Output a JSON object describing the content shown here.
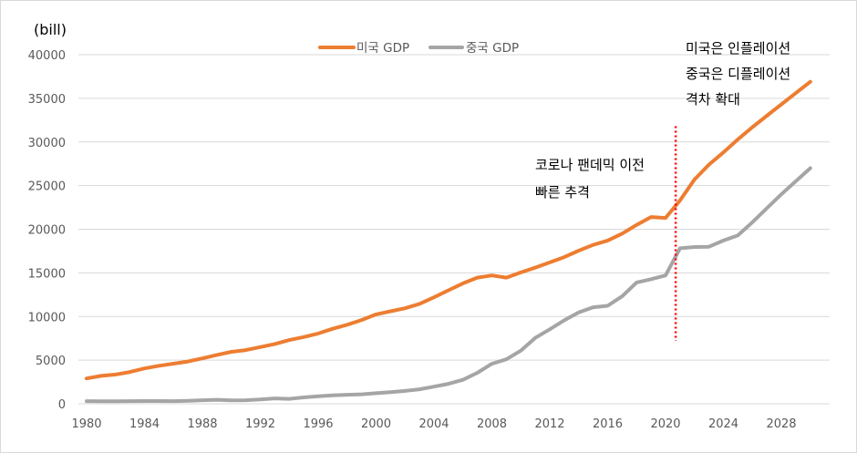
{
  "chart_data": {
    "type": "line",
    "title": "",
    "ylabel": "(bill)",
    "xlabel": "",
    "ylim": [
      0,
      40000
    ],
    "xlim": [
      1980,
      2030
    ],
    "yticks": [
      0,
      5000,
      10000,
      15000,
      20000,
      25000,
      30000,
      35000,
      40000
    ],
    "xticks": [
      1980,
      1984,
      1988,
      1992,
      1996,
      2000,
      2004,
      2008,
      2012,
      2016,
      2020,
      2024,
      2028
    ],
    "grid": "horizontal",
    "legend_position": "top-center",
    "x": [
      1980,
      1981,
      1982,
      1983,
      1984,
      1985,
      1986,
      1987,
      1988,
      1989,
      1990,
      1991,
      1992,
      1993,
      1994,
      1995,
      1996,
      1997,
      1998,
      1999,
      2000,
      2001,
      2002,
      2003,
      2004,
      2005,
      2006,
      2007,
      2008,
      2009,
      2010,
      2011,
      2012,
      2013,
      2014,
      2015,
      2016,
      2017,
      2018,
      2019,
      2020,
      2021,
      2022,
      2023,
      2024,
      2025,
      2026,
      2027,
      2028,
      2029,
      2030
    ],
    "series": [
      {
        "name": "미국 GDP",
        "color": "#ed7d31",
        "values": [
          2900,
          3200,
          3350,
          3650,
          4050,
          4350,
          4600,
          4850,
          5200,
          5600,
          5950,
          6150,
          6500,
          6850,
          7300,
          7650,
          8050,
          8600,
          9050,
          9600,
          10250,
          10600,
          10950,
          11450,
          12200,
          13000,
          13800,
          14450,
          14700,
          14450,
          15050,
          15600,
          16200,
          16800,
          17550,
          18200,
          18700,
          19500,
          20500,
          21400,
          21300,
          23300,
          25700,
          27400,
          28800,
          30300,
          31700,
          33000,
          34300,
          35600,
          36900
        ]
      },
      {
        "name": "중국 GDP",
        "color": "#a5a5a5",
        "values": [
          300,
          290,
          280,
          300,
          310,
          310,
          300,
          330,
          410,
          460,
          400,
          410,
          490,
          620,
          560,
          730,
          860,
          960,
          1030,
          1090,
          1210,
          1340,
          1470,
          1660,
          1960,
          2290,
          2750,
          3550,
          4590,
          5100,
          6090,
          7550,
          8530,
          9570,
          10480,
          11060,
          11230,
          12310,
          13900,
          14280,
          14700,
          17820,
          17960,
          17990,
          18700,
          19300,
          20800,
          22400,
          24000,
          25500,
          27000
        ]
      }
    ],
    "reference_line": {
      "x": 2020.7,
      "y_range": [
        7200,
        31800
      ],
      "color": "#ff0000",
      "style": "dotted"
    },
    "annotations": [
      {
        "lines": [
          "코로나 팬데믹 이전",
          "빠른 추격"
        ]
      },
      {
        "lines": [
          "미국은 인플레이션",
          "중국은 디플레이션",
          "격차 확대"
        ]
      }
    ]
  }
}
